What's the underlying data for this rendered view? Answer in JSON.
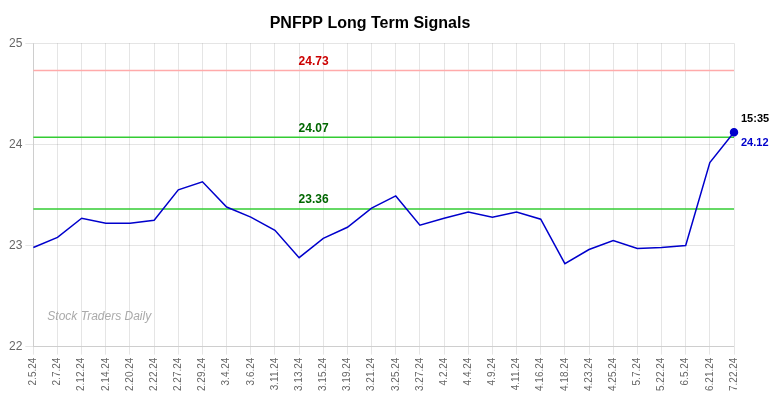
{
  "chart_data": {
    "type": "line",
    "title": "PNFPP Long Term Signals",
    "categories": [
      "2.5.24",
      "2.7.24",
      "2.12.24",
      "2.14.24",
      "2.20.24",
      "2.22.24",
      "2.27.24",
      "2.29.24",
      "3.4.24",
      "3.6.24",
      "3.11.24",
      "3.13.24",
      "3.15.24",
      "3.19.24",
      "3.21.24",
      "3.25.24",
      "3.27.24",
      "4.2.24",
      "4.4.24",
      "4.9.24",
      "4.11.24",
      "4.16.24",
      "4.18.24",
      "4.23.24",
      "4.25.24",
      "5.7.24",
      "5.22.24",
      "6.5.24",
      "6.21.24",
      "7.22.24"
    ],
    "values": [
      22.98,
      23.08,
      23.27,
      23.22,
      23.22,
      23.25,
      23.55,
      23.63,
      23.38,
      23.28,
      23.15,
      22.88,
      23.07,
      23.18,
      23.37,
      23.49,
      23.2,
      23.27,
      23.33,
      23.28,
      23.33,
      23.26,
      22.82,
      22.96,
      23.05,
      22.97,
      22.98,
      23.0,
      23.82,
      24.12
    ],
    "color": "#0000cc",
    "ylim": [
      22,
      25
    ],
    "yticks": [
      22,
      23,
      24,
      25
    ],
    "grid": true,
    "hlines": [
      {
        "value": 24.73,
        "color": "#ffaaaa",
        "text_color": "#cc0000"
      },
      {
        "value": 24.07,
        "color": "#33cc33",
        "text_color": "#006600"
      },
      {
        "value": 23.36,
        "color": "#33cc33",
        "text_color": "#006600"
      }
    ],
    "annotations": [
      {
        "text": "15:35",
        "x": "7.22.24",
        "y": 24.12,
        "color": "#000000",
        "position": "above"
      },
      {
        "text": "24.12",
        "x": "7.22.24",
        "y": 24.12,
        "color": "#0000cc",
        "position": "below"
      }
    ],
    "watermark": "Stock Traders Daily",
    "watermark_color": "#aaaaaa"
  }
}
